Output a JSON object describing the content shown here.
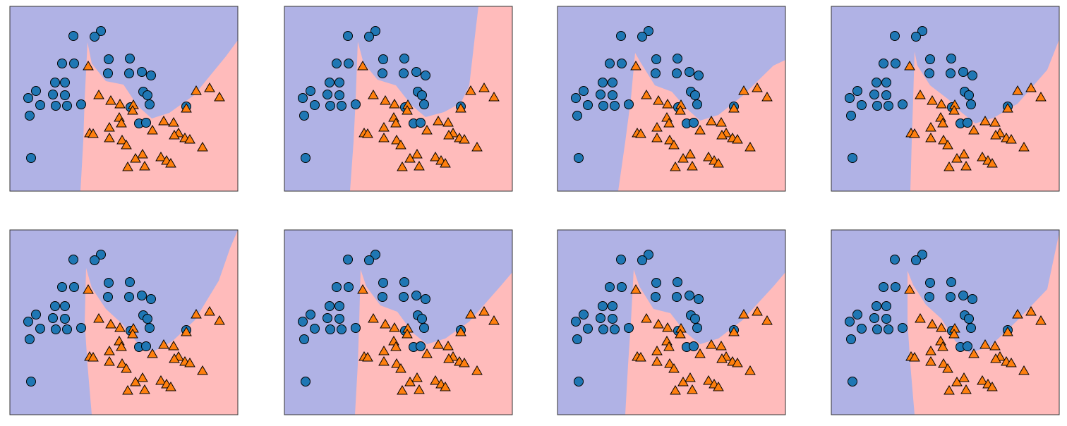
{
  "chart_data": {
    "type": "scatter",
    "xlim": [
      0,
      323
    ],
    "ylim": [
      0,
      262
    ],
    "region_colors": [
      "#b0b2e5",
      "#ffbbbb"
    ],
    "series": [
      {
        "marker": "circle",
        "color": "#1f77b4",
        "x": [
          90,
          129,
          120,
          74,
          91,
          140,
          170,
          187,
          139,
          169,
          200,
          37,
          26,
          64,
          78,
          61,
          78,
          28,
          43,
          65,
          81,
          101,
          189,
          195,
          198,
          171,
          250,
          183,
          193,
          30
        ],
        "y": [
          220,
          227,
          219,
          181,
          181,
          187,
          188,
          169,
          167,
          167,
          164,
          142,
          132,
          154,
          154,
          137,
          136,
          107,
          122,
          121,
          121,
          123,
          141,
          136,
          123,
          119,
          120,
          96,
          97,
          47
        ]
      },
      {
        "marker": "triangle",
        "color": "#ff7f0e",
        "x": [
          111,
          126,
          143,
          156,
          175,
          174,
          155,
          158,
          141,
          113,
          118,
          141,
          159,
          165,
          218,
          232,
          239,
          250,
          248,
          255,
          264,
          283,
          297,
          273,
          188,
          178,
          167,
          191,
          214,
          222,
          228,
          202,
          233
        ],
        "y": [
          176,
          135,
          127,
          122,
          121,
          113,
          103,
          95,
          89,
          81,
          80,
          74,
          71,
          64,
          98,
          96,
          81,
          116,
          74,
          72,
          141,
          145,
          132,
          61,
          51,
          45,
          33,
          34,
          47,
          42,
          38,
          85,
          78
        ]
      }
    ],
    "boundaries": [
      {
        "x": [
          100,
          104,
          106,
          110,
          116,
          136,
          161,
          181,
          201,
          226,
          261,
          306,
          323,
          323
        ],
        "y": [
          0,
          71,
          131,
          211,
          181,
          156,
          151,
          121,
          103,
          111,
          136,
          191,
          214,
          0
        ]
      },
      {
        "x": [
          93,
          98,
          101,
          104,
          112,
          132,
          158,
          180,
          200,
          226,
          250,
          262,
          270,
          275,
          323,
          323
        ],
        "y": [
          0,
          70,
          130,
          212,
          182,
          158,
          150,
          122,
          105,
          112,
          125,
          150,
          220,
          262,
          262,
          0
        ]
      },
      {
        "x": [
          86,
          96,
          104,
          110,
          118,
          138,
          162,
          182,
          202,
          228,
          262,
          306,
          323,
          323
        ],
        "y": [
          0,
          70,
          131,
          196,
          182,
          150,
          141,
          118,
          100,
          108,
          135,
          178,
          186,
          0
        ]
      },
      {
        "x": [
          112,
          114,
          116,
          118,
          122,
          140,
          166,
          184,
          204,
          230,
          264,
          306,
          323,
          323
        ],
        "y": [
          0,
          71,
          131,
          198,
          178,
          150,
          130,
          112,
          96,
          104,
          124,
          172,
          215,
          0
        ]
      },
      {
        "x": [
          116,
          110,
          106,
          108,
          116,
          136,
          160,
          182,
          204,
          230,
          262,
          296,
          312,
          323,
          323
        ],
        "y": [
          0,
          71,
          131,
          208,
          180,
          150,
          128,
          100,
          90,
          104,
          134,
          190,
          236,
          262,
          0
        ]
      },
      {
        "x": [
          100,
          104,
          106,
          108,
          116,
          136,
          160,
          182,
          202,
          228,
          262,
          306,
          323,
          323
        ],
        "y": [
          0,
          71,
          131,
          206,
          182,
          155,
          146,
          116,
          100,
          108,
          132,
          182,
          202,
          0
        ]
      },
      {
        "x": [
          96,
          100,
          104,
          108,
          116,
          136,
          160,
          180,
          202,
          228,
          262,
          306,
          323,
          323
        ],
        "y": [
          0,
          71,
          131,
          206,
          182,
          150,
          144,
          118,
          100,
          108,
          134,
          182,
          202,
          0
        ]
      },
      {
        "x": [
          118,
          112,
          108,
          108,
          116,
          134,
          156,
          176,
          196,
          224,
          262,
          306,
          323,
          323
        ],
        "y": [
          0,
          71,
          131,
          204,
          184,
          156,
          136,
          104,
          88,
          96,
          132,
          178,
          258,
          0
        ]
      }
    ]
  }
}
